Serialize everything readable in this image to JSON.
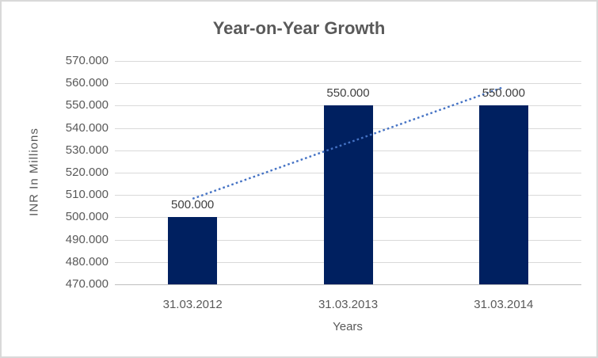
{
  "chart_data": {
    "type": "bar",
    "title": "Year-on-Year Growth",
    "xlabel": "Years",
    "ylabel": "INR In Millions",
    "categories": [
      "31.03.2012",
      "31.03.2013",
      "31.03.2014"
    ],
    "values": [
      500,
      550,
      550
    ],
    "data_labels": [
      "500.000",
      "550.000",
      "550.000"
    ],
    "ylim": [
      470,
      570
    ],
    "ytick_step": 10,
    "ytick_values": [
      570,
      560,
      550,
      540,
      530,
      520,
      510,
      500,
      490,
      480,
      470
    ],
    "ytick_labels": [
      "570.000",
      "560.000",
      "550.000",
      "540.000",
      "530.000",
      "520.000",
      "510.000",
      "500.000",
      "490.000",
      "480.000",
      "470.000"
    ],
    "grid": true,
    "legend": "none",
    "trendline": {
      "type": "linear",
      "style": "dotted",
      "start_value": 508.33,
      "end_value": 558.33,
      "color": "#4472C4"
    },
    "colors": {
      "bar": "#002060",
      "gridline": "#D9D9D9",
      "axis_line": "#BFBFBF",
      "border": "#D9D9D9",
      "background": "#FFFFFF",
      "title_text": "#595959",
      "axis_text": "#595959",
      "data_label_text": "#404040"
    }
  }
}
